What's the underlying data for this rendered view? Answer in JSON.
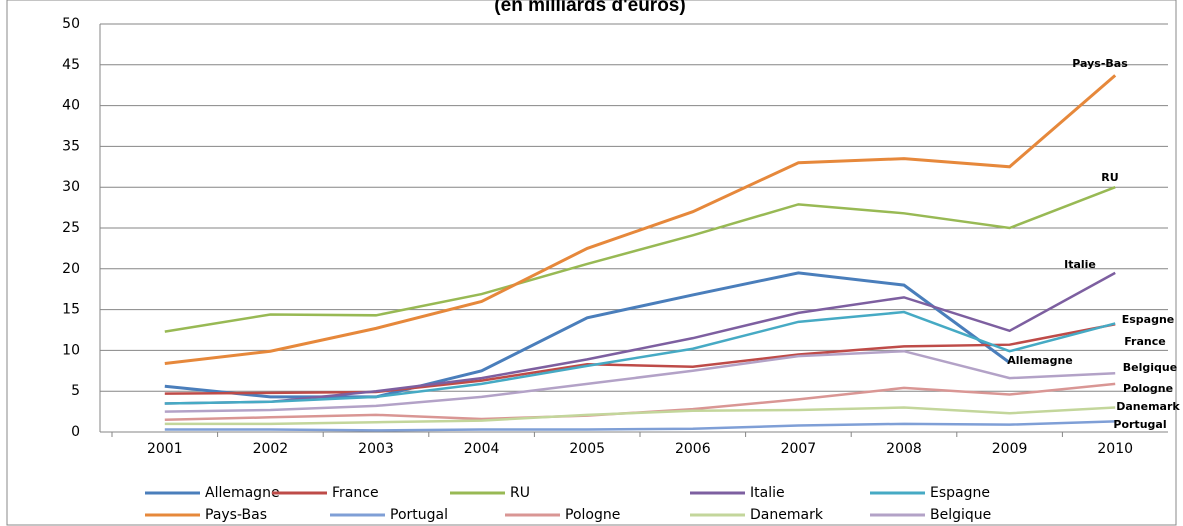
{
  "chart_data": {
    "type": "line",
    "title": "(en milliards d'euros)",
    "categories": [
      "2001",
      "2002",
      "2003",
      "2004",
      "2005",
      "2006",
      "2007",
      "2008",
      "2009",
      "2010"
    ],
    "ylim": [
      0,
      50
    ],
    "yticks": [
      0,
      5,
      10,
      15,
      20,
      25,
      30,
      35,
      40,
      45,
      50
    ],
    "grid": true,
    "series": [
      {
        "name": "Allemagne",
        "color": "#4a7ebb",
        "values": [
          5.6,
          4.3,
          4.3,
          7.5,
          14,
          16.8,
          19.5,
          18,
          8.5,
          null
        ]
      },
      {
        "name": "France",
        "color": "#be4b48",
        "values": [
          4.7,
          4.8,
          4.9,
          6.3,
          8.3,
          8.0,
          9.5,
          10.5,
          10.7,
          13.2
        ]
      },
      {
        "name": "RU",
        "color": "#98b954",
        "values": [
          12.3,
          14.4,
          14.3,
          16.9,
          20.6,
          24.1,
          27.9,
          26.8,
          25.0,
          30.0
        ]
      },
      {
        "name": "Italie",
        "color": "#7d5fa0",
        "values": [
          3.5,
          3.7,
          5.0,
          6.6,
          8.9,
          11.5,
          14.6,
          16.5,
          12.4,
          19.5
        ]
      },
      {
        "name": "Espagne",
        "color": "#46aac4",
        "values": [
          3.5,
          3.7,
          4.3,
          5.9,
          8.1,
          10.2,
          13.5,
          14.7,
          9.9,
          13.3
        ]
      },
      {
        "name": "Pays-Bas",
        "color": "#e6883b",
        "values": [
          8.4,
          9.9,
          12.7,
          16.0,
          22.5,
          27.0,
          33.0,
          33.5,
          32.5,
          43.7
        ]
      },
      {
        "name": "Portugal",
        "color": "#7f9fd6",
        "values": [
          0.3,
          0.3,
          0.2,
          0.3,
          0.3,
          0.4,
          0.8,
          1.0,
          0.9,
          1.3
        ]
      },
      {
        "name": "Pologne",
        "color": "#d99694",
        "values": [
          1.5,
          1.8,
          2.1,
          1.6,
          2.0,
          2.8,
          4.0,
          5.4,
          4.6,
          5.9
        ]
      },
      {
        "name": "Danemark",
        "color": "#c3d69b",
        "values": [
          1.0,
          1.0,
          1.2,
          1.4,
          2.1,
          2.6,
          2.7,
          3.0,
          2.3,
          3.0
        ]
      },
      {
        "name": "Belgique",
        "color": "#b3a2c7",
        "values": [
          2.5,
          2.7,
          3.2,
          4.3,
          5.9,
          7.5,
          9.3,
          9.9,
          6.6,
          7.2
        ]
      }
    ]
  }
}
